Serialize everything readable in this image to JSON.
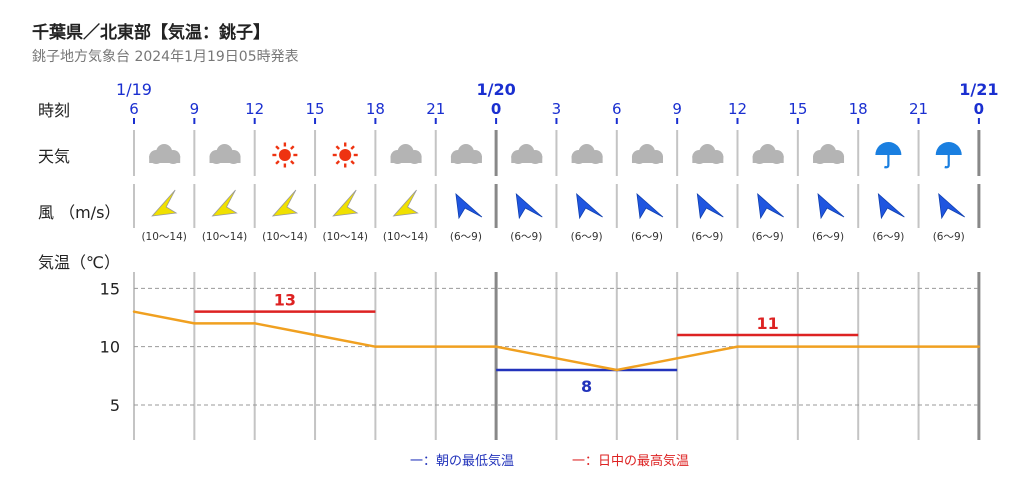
{
  "header": {
    "title": "千葉県／北東部【気温：銚子】",
    "subtitle": "銚子地方気象台 2024年1月19日05時発表"
  },
  "row_labels": {
    "time": "時刻",
    "weather": "天気",
    "wind": "風 （m/s）",
    "temp": "気温（℃）"
  },
  "dates": [
    {
      "label": "1/19",
      "col": 0
    },
    {
      "label": "1/20",
      "col": 6
    },
    {
      "label": "1/21",
      "col": 14
    }
  ],
  "hours": [
    "6",
    "9",
    "12",
    "15",
    "18",
    "21",
    "0",
    "3",
    "6",
    "9",
    "12",
    "15",
    "18",
    "21",
    "0"
  ],
  "weather": [
    "cloudy",
    "cloudy",
    "sunny",
    "sunny",
    "cloudy",
    "cloudy",
    "cloudy",
    "cloudy",
    "cloudy",
    "cloudy",
    "cloudy",
    "cloudy",
    "rain",
    "rain"
  ],
  "wind": {
    "directions": [
      "SW",
      "SW",
      "SW",
      "SW",
      "SW",
      "NW",
      "NW",
      "NW",
      "NW",
      "NW",
      "NW",
      "NW",
      "NW",
      "NW"
    ],
    "speeds": [
      "(10～14)",
      "(10～14)",
      "(10～14)",
      "(10～14)",
      "(10～14)",
      "(6～9)",
      "(6～9)",
      "(6～9)",
      "(6～9)",
      "(6～9)",
      "(6～9)",
      "(6～9)",
      "(6～9)",
      "(6～9)"
    ],
    "colors": {
      "strong": "#f0e000",
      "moderate": "#1f55e0"
    }
  },
  "chart_data": {
    "type": "line",
    "x": [
      "1/19 6",
      "1/19 9",
      "1/19 12",
      "1/19 15",
      "1/19 18",
      "1/19 21",
      "1/20 0",
      "1/20 3",
      "1/20 6",
      "1/20 9",
      "1/20 12",
      "1/20 15",
      "1/20 18",
      "1/20 21",
      "1/21 0"
    ],
    "series": [
      {
        "values": [
          13,
          12,
          12,
          11,
          10,
          10,
          10,
          9,
          8,
          9,
          10,
          10,
          10,
          10,
          10
        ],
        "color": "#f0a020"
      }
    ],
    "max_temps": [
      {
        "value": 13,
        "label": "13",
        "from": "1/19 9",
        "to": "1/19 18"
      },
      {
        "value": 11,
        "label": "11",
        "from": "1/20 9",
        "to": "1/20 18"
      }
    ],
    "min_temps": [
      {
        "value": 8,
        "label": "8",
        "from": "1/20 0",
        "to": "1/20 9"
      }
    ],
    "yticks": [
      5,
      10,
      15
    ],
    "ylim": [
      2,
      17
    ],
    "grid": true
  },
  "legend": {
    "min_label": "一：朝の最低気温",
    "max_label": "一：日中の最高気温",
    "min_color": "#2233bb",
    "max_color": "#dd2222"
  },
  "colors": {
    "date_blue": "#1a2fd0",
    "grid": "#999999",
    "sunny": "#ee3311",
    "rain": "#1a7fe0",
    "cloud": "#b4b4b4"
  }
}
